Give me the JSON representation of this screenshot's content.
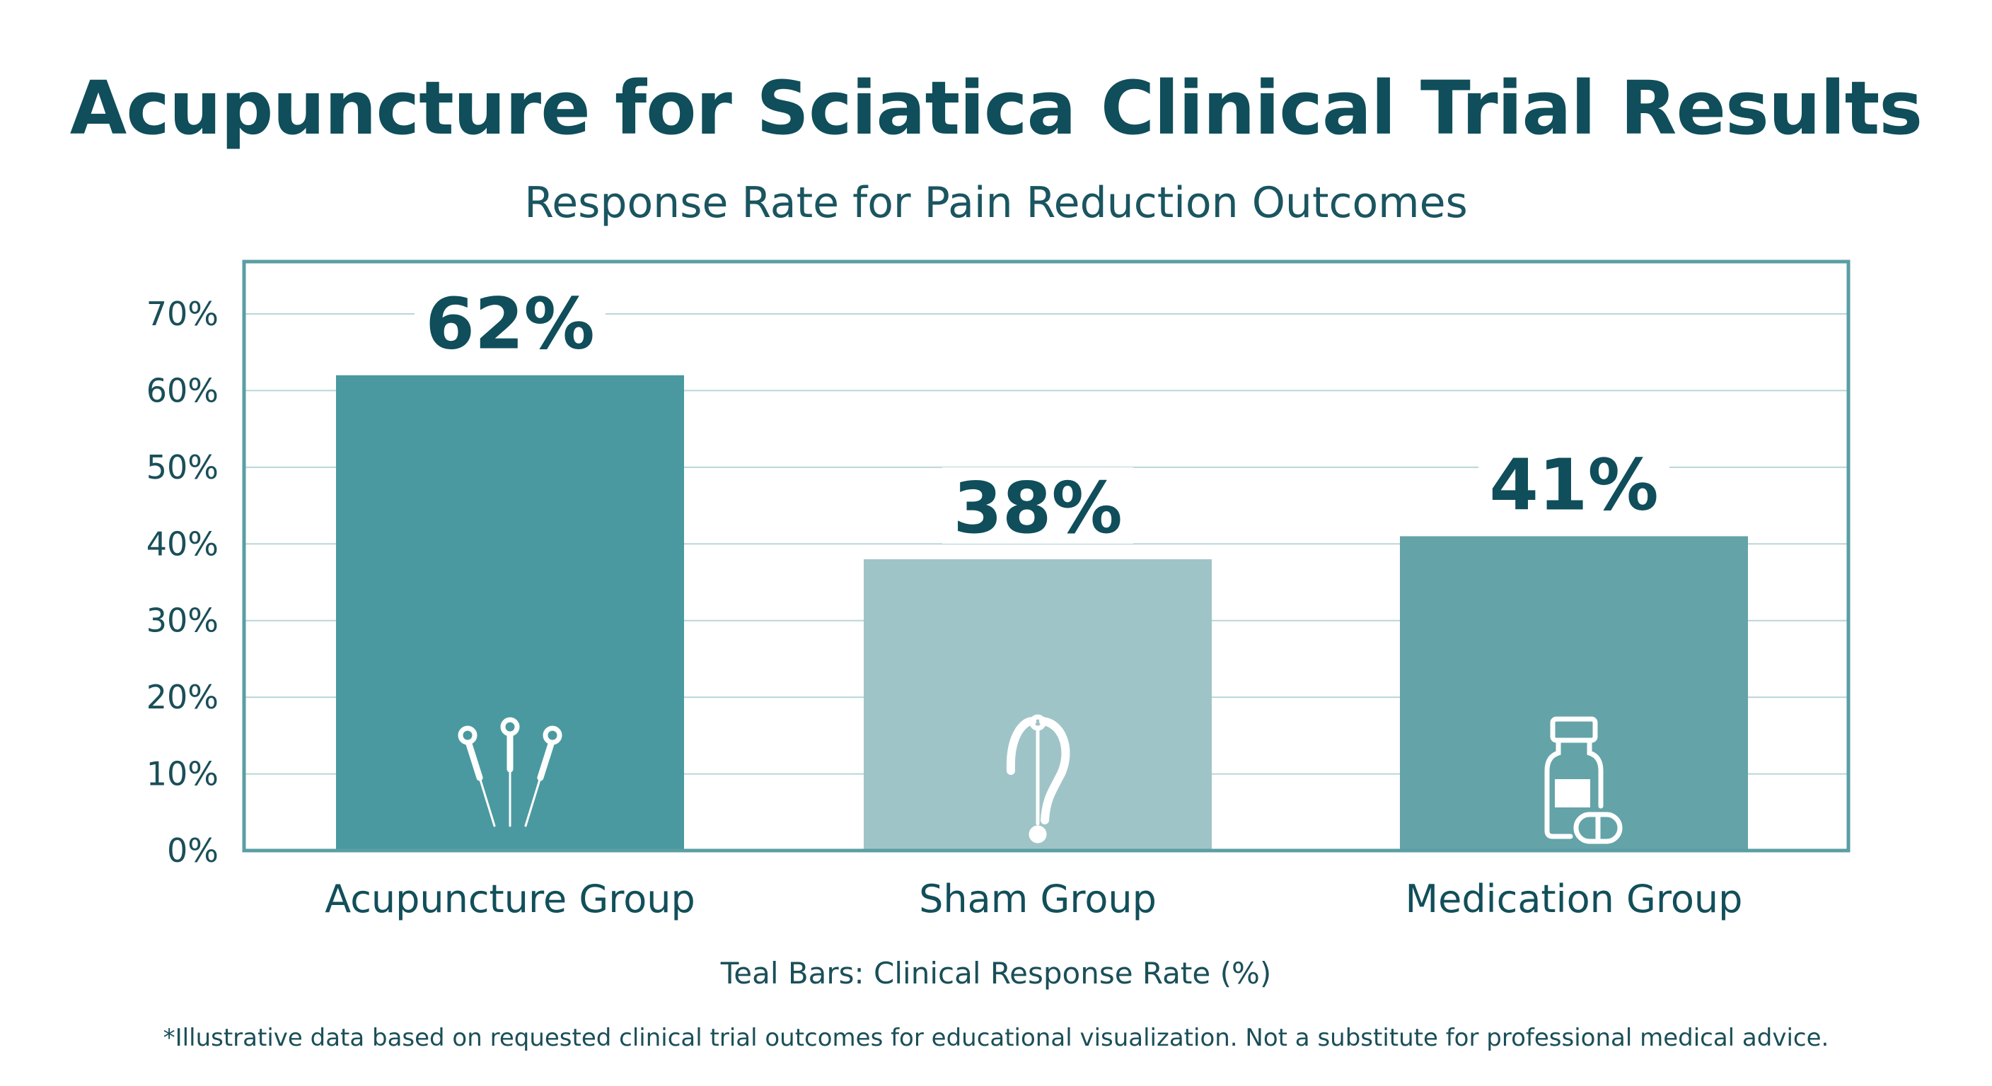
{
  "title": "Acupuncture for Sciatica Clinical Trial Results",
  "subtitle": "Response Rate for Pain Reduction Outcomes",
  "legend_text": "Teal Bars: Clinical Response Rate (%)",
  "footnote": "*Illustrative data based on requested clinical trial outcomes for educational visualization. Not a substitute for professional medical advice.",
  "chart_data": {
    "type": "bar",
    "title": "Acupuncture for Sciatica Clinical Trial Results",
    "subtitle": "Response Rate for Pain Reduction Outcomes",
    "categories": [
      "Acupuncture Group",
      "Sham Group",
      "Medication Group"
    ],
    "values": [
      62,
      38,
      41
    ],
    "data_labels": [
      "62%",
      "38%",
      "41%"
    ],
    "bar_colors": [
      "#4a99a0",
      "#9fc4c7",
      "#64a3a8"
    ],
    "bar_icons": [
      "acupuncture-needles-icon",
      "needle-question-mark-icon",
      "pill-bottle-icon"
    ],
    "ylim": [
      0,
      70
    ],
    "yticks": [
      0,
      10,
      20,
      30,
      40,
      50,
      60,
      70
    ],
    "ytick_labels": [
      "0%",
      "10%",
      "20%",
      "30%",
      "40%",
      "50%",
      "60%",
      "70%"
    ],
    "xlabel": "",
    "ylabel": "",
    "grid": true,
    "legend": "bottom"
  },
  "colors": {
    "title": "#0f4e5a",
    "frame": "#5a9ea3",
    "grid": "#b9d6d8"
  }
}
